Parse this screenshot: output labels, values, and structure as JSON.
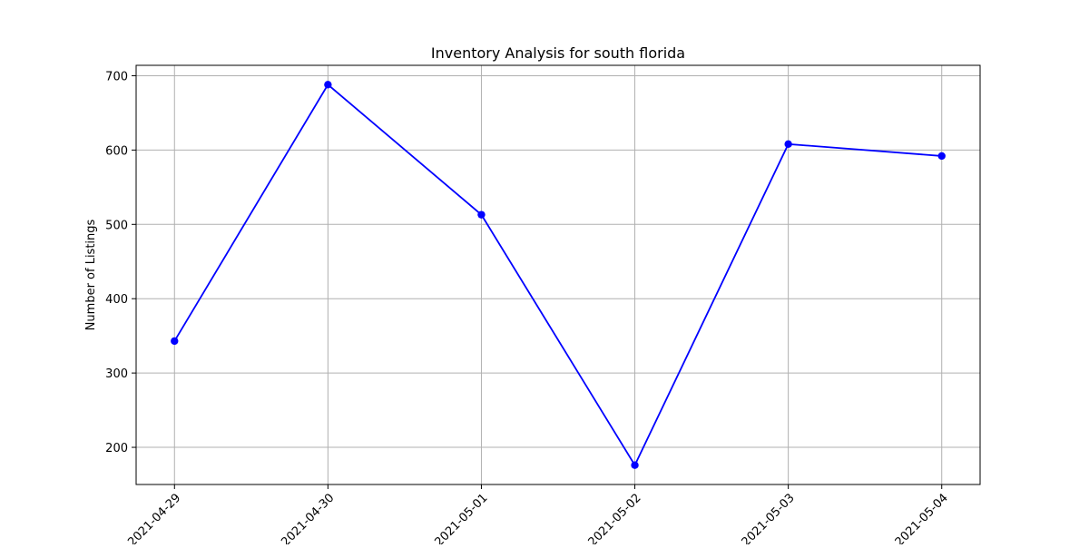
{
  "chart_data": {
    "type": "line",
    "title": "Inventory Analysis for south florida",
    "xlabel": "",
    "ylabel": "Number of Listings",
    "x": [
      "2021-04-29",
      "2021-04-30",
      "2021-05-01",
      "2021-05-02",
      "2021-05-03",
      "2021-05-04"
    ],
    "series": [
      {
        "values": [
          343,
          688,
          513,
          176,
          608,
          592
        ],
        "color": "#0000ff",
        "marker": "circle"
      }
    ],
    "yticks": [
      200,
      300,
      400,
      500,
      600,
      700
    ],
    "ylim": [
      150,
      714
    ],
    "grid": true,
    "axis_color": "#000000",
    "grid_color": "#b0b0b0"
  }
}
